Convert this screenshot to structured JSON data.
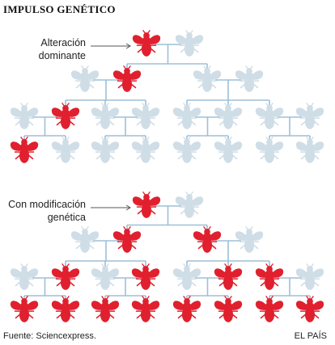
{
  "title": "IMPULSO GENÉTICO",
  "diagram_top": {
    "label_line1": "Alteración",
    "label_line2": "dominante",
    "generations": [
      [
        "red",
        "blue"
      ],
      [
        "blue",
        "red",
        "blue",
        "blue"
      ],
      [
        "blue",
        "red",
        "blue",
        "blue",
        "blue",
        "blue",
        "blue",
        "blue"
      ],
      [
        "red",
        "blue",
        "blue",
        "blue",
        "blue",
        "blue",
        "blue",
        "blue"
      ]
    ]
  },
  "diagram_bottom": {
    "label_line1": "Con modificación",
    "label_line2": "genética",
    "generations": [
      [
        "red",
        "blue"
      ],
      [
        "blue",
        "red",
        "red",
        "blue"
      ],
      [
        "blue",
        "red",
        "blue",
        "red",
        "blue",
        "red",
        "red",
        "blue"
      ],
      [
        "red",
        "red",
        "red",
        "red",
        "red",
        "red",
        "red",
        "red"
      ]
    ]
  },
  "colors": {
    "mutant": "#e0202e",
    "normal": "#cfdde6",
    "connector": "#9dbfd8"
  },
  "footer": {
    "source": "Fuente: Sciencexpress.",
    "credit": "EL PAÍS"
  }
}
